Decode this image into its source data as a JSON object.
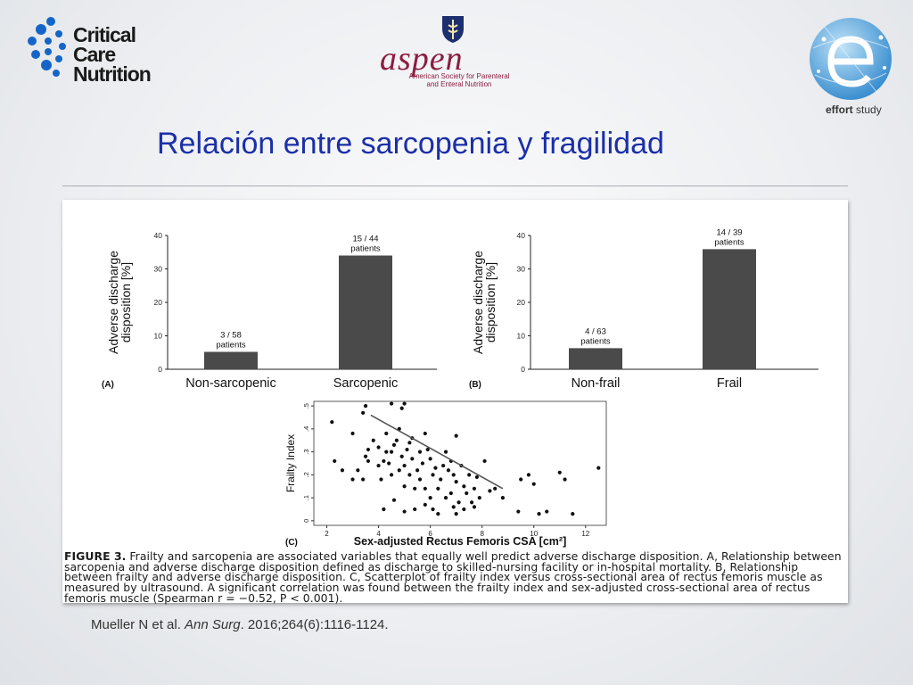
{
  "logos": {
    "critical_care": {
      "line1": "Critical Care",
      "line2": "Nutrition",
      "icon": "dots-hex-icon"
    },
    "aspen": {
      "word": "aspen",
      "sub_line1": "American Society for Parenteral",
      "sub_line2": "and Enteral Nutrition",
      "icon": "crest-icon"
    },
    "effort": {
      "bold": "effort",
      "light": " study",
      "icon": "globe-e-icon"
    }
  },
  "slide": {
    "title": "Relación entre sarcopenia y fragilidad",
    "citation_authors": "Mueller N et al. ",
    "citation_journal": "Ann Surg",
    "citation_rest": ". 2016;264(6):1116-1124."
  },
  "colors": {
    "title": "#1b2fa8",
    "bar": "#4a4a4a",
    "point": "#111111"
  },
  "caption": {
    "label": "FIGURE 3.",
    "text": " Frailty and sarcopenia are associated variables that equally well predict adverse discharge disposition. A, Relationship between sarcopenia and adverse discharge disposition defined as discharge to skilled-nursing facility or in-hospital mortality. B, Relationship between frailty and adverse discharge disposition. C, Scatterplot of frailty index versus cross-sectional area of rectus femoris muscle as measured by ultrasound. A significant correlation was found between the frailty index and sex-adjusted cross-sectional area of rectus femoris muscle (Spearman r = −0.52, P < 0.001)."
  },
  "chart_data": [
    {
      "type": "bar",
      "panel": "(A)",
      "categories": [
        "Non-sarcopenic",
        "Sarcopenic"
      ],
      "values": [
        5.2,
        34
      ],
      "labels_top": [
        "3 / 58",
        "15 / 44"
      ],
      "labels_bottom": [
        "patients",
        "patients"
      ],
      "ylabel_line1": "Adverse discharge",
      "ylabel_line2": "disposition [%]",
      "ylim": [
        0,
        40
      ],
      "yticks": [
        "0",
        "10",
        "20",
        "30",
        "40"
      ]
    },
    {
      "type": "bar",
      "panel": "(B)",
      "categories": [
        "Non-frail",
        "Frail"
      ],
      "values": [
        6.3,
        35.9
      ],
      "labels_top": [
        "4 / 63",
        "14 / 39"
      ],
      "labels_bottom": [
        "patients",
        "patients"
      ],
      "ylabel_line1": "Adverse discharge",
      "ylabel_line2": "disposition [%]",
      "ylim": [
        0,
        40
      ],
      "yticks": [
        "0",
        "10",
        "20",
        "30",
        "40"
      ]
    },
    {
      "type": "scatter",
      "panel": "(C)",
      "xlabel": "Sex-adjusted Rectus Femoris CSA [cm²]",
      "ylabel": "Frailty Index",
      "xlim": [
        1.5,
        12.8
      ],
      "ylim": [
        -0.02,
        0.52
      ],
      "xticks": [
        "2",
        "4",
        "6",
        "8",
        "10",
        "12"
      ],
      "yticks": [
        "0",
        ".1",
        ".2",
        ".3",
        ".4",
        ".5"
      ],
      "trend": {
        "x": [
          3.7,
          8.8
        ],
        "y": [
          0.46,
          0.14
        ]
      },
      "points": [
        [
          2.2,
          0.43
        ],
        [
          3.0,
          0.38
        ],
        [
          3.4,
          0.47
        ],
        [
          3.5,
          0.5
        ],
        [
          4.5,
          0.51
        ],
        [
          4.9,
          0.49
        ],
        [
          5.0,
          0.51
        ],
        [
          2.3,
          0.26
        ],
        [
          2.6,
          0.22
        ],
        [
          3.0,
          0.18
        ],
        [
          3.2,
          0.22
        ],
        [
          3.4,
          0.18
        ],
        [
          3.5,
          0.28
        ],
        [
          3.6,
          0.26
        ],
        [
          3.6,
          0.31
        ],
        [
          3.8,
          0.35
        ],
        [
          4.0,
          0.32
        ],
        [
          4.0,
          0.24
        ],
        [
          4.1,
          0.18
        ],
        [
          4.2,
          0.26
        ],
        [
          4.3,
          0.3
        ],
        [
          4.3,
          0.38
        ],
        [
          4.4,
          0.25
        ],
        [
          4.5,
          0.3
        ],
        [
          4.5,
          0.2
        ],
        [
          4.6,
          0.33
        ],
        [
          4.7,
          0.35
        ],
        [
          4.8,
          0.4
        ],
        [
          4.8,
          0.22
        ],
        [
          4.9,
          0.28
        ],
        [
          5.0,
          0.15
        ],
        [
          5.0,
          0.24
        ],
        [
          5.1,
          0.31
        ],
        [
          5.2,
          0.34
        ],
        [
          5.2,
          0.2
        ],
        [
          5.3,
          0.36
        ],
        [
          5.3,
          0.27
        ],
        [
          5.4,
          0.14
        ],
        [
          5.5,
          0.22
        ],
        [
          5.6,
          0.3
        ],
        [
          5.6,
          0.18
        ],
        [
          5.7,
          0.25
        ],
        [
          5.8,
          0.38
        ],
        [
          5.8,
          0.14
        ],
        [
          5.9,
          0.31
        ],
        [
          6.0,
          0.27
        ],
        [
          6.0,
          0.1
        ],
        [
          6.1,
          0.2
        ],
        [
          6.2,
          0.23
        ],
        [
          6.3,
          0.14
        ],
        [
          6.4,
          0.18
        ],
        [
          6.5,
          0.24
        ],
        [
          6.6,
          0.3
        ],
        [
          6.7,
          0.22
        ],
        [
          6.8,
          0.26
        ],
        [
          6.8,
          0.12
        ],
        [
          6.9,
          0.2
        ],
        [
          7.0,
          0.37
        ],
        [
          7.0,
          0.17
        ],
        [
          7.1,
          0.08
        ],
        [
          7.2,
          0.24
        ],
        [
          7.3,
          0.15
        ],
        [
          7.4,
          0.12
        ],
        [
          7.5,
          0.2
        ],
        [
          7.6,
          0.08
        ],
        [
          7.7,
          0.14
        ],
        [
          7.8,
          0.19
        ],
        [
          7.9,
          0.1
        ],
        [
          8.1,
          0.26
        ],
        [
          8.3,
          0.13
        ],
        [
          8.5,
          0.14
        ],
        [
          4.2,
          0.05
        ],
        [
          4.6,
          0.09
        ],
        [
          5.0,
          0.04
        ],
        [
          5.4,
          0.05
        ],
        [
          5.8,
          0.07
        ],
        [
          6.1,
          0.05
        ],
        [
          6.3,
          0.03
        ],
        [
          6.6,
          0.1
        ],
        [
          6.9,
          0.06
        ],
        [
          7.3,
          0.05
        ],
        [
          7.7,
          0.06
        ],
        [
          7.0,
          0.03
        ],
        [
          8.8,
          0.1
        ],
        [
          9.5,
          0.18
        ],
        [
          9.8,
          0.2
        ],
        [
          10.0,
          0.16
        ],
        [
          9.4,
          0.04
        ],
        [
          10.2,
          0.03
        ],
        [
          10.5,
          0.04
        ],
        [
          11.0,
          0.21
        ],
        [
          11.2,
          0.18
        ],
        [
          11.5,
          0.03
        ],
        [
          12.5,
          0.23
        ]
      ]
    }
  ]
}
